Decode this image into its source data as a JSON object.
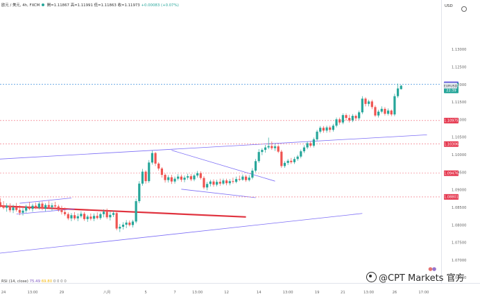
{
  "header": {
    "symbol": "欧元 / 美元, 4h, FXCM",
    "open": "開=1.11867",
    "high": "高=1.11991",
    "low": "低=1.11863",
    "close": "收=1.11973",
    "change": "+0.00083 (+0.07%)",
    "currency": "USD"
  },
  "rsi_legend": {
    "label": "RSI (14, close)",
    "value1": "75.49",
    "value2": "69.80",
    "extra": "0 0 0 0"
  },
  "watermark": "@CPT Markets 官方",
  "colors": {
    "up": "#26a69a",
    "down": "#ef5350",
    "channel": "#7b6cf6",
    "red_line": "#e0323e",
    "level_dash": "#f06070",
    "current": "#1e7fd8"
  },
  "chart_data": {
    "type": "candlestick",
    "title": "欧元 / 美元, 4h, FXCM",
    "ylabel": "USD",
    "ylim": [
      1.0635,
      1.1435
    ],
    "y_ticks": [
      1.065,
      1.07,
      1.075,
      1.08,
      1.085,
      1.09,
      1.095,
      1.1,
      1.105,
      1.11,
      1.115,
      1.12,
      1.125,
      1.13
    ],
    "y_tick_labels": [
      "1.06500",
      "1.07000",
      "1.07500",
      "1.08000",
      "1.08500",
      "1.09000",
      "1.09500",
      "1.10000",
      "1.10500",
      "1.11000",
      "1.11500",
      "1.12000",
      "1.12500",
      "1.13000"
    ],
    "x_tick_labels": [
      "24",
      "13:00",
      "29",
      "八月",
      "5",
      "7",
      "13:00",
      "12",
      "14",
      "13:00",
      "19",
      "21",
      "13:00",
      "26",
      "17:00"
    ],
    "x_tick_index": [
      1,
      10,
      19,
      33,
      45,
      54,
      61,
      70,
      80,
      89,
      98,
      106,
      114,
      122,
      131
    ],
    "bar_count": 135,
    "candles": [
      [
        1.0865,
        1.0876,
        1.085,
        1.0855
      ],
      [
        1.0855,
        1.0868,
        1.0845,
        1.0849
      ],
      [
        1.0849,
        1.0862,
        1.0838,
        1.0855
      ],
      [
        1.0855,
        1.0862,
        1.0836,
        1.0842
      ],
      [
        1.0842,
        1.0858,
        1.0834,
        1.085
      ],
      [
        1.085,
        1.0863,
        1.0838,
        1.0843
      ],
      [
        1.0843,
        1.0856,
        1.0828,
        1.0835
      ],
      [
        1.0835,
        1.0848,
        1.0827,
        1.0841
      ],
      [
        1.0841,
        1.0858,
        1.0835,
        1.0852
      ],
      [
        1.0852,
        1.0866,
        1.0842,
        1.0846
      ],
      [
        1.0846,
        1.0861,
        1.0838,
        1.0855
      ],
      [
        1.0855,
        1.0864,
        1.0845,
        1.0849
      ],
      [
        1.0849,
        1.0866,
        1.0844,
        1.0861
      ],
      [
        1.0861,
        1.0867,
        1.0842,
        1.0847
      ],
      [
        1.0847,
        1.0862,
        1.0839,
        1.0857
      ],
      [
        1.0857,
        1.0869,
        1.0846,
        1.0851
      ],
      [
        1.0851,
        1.0863,
        1.0841,
        1.0856
      ],
      [
        1.0856,
        1.0866,
        1.0846,
        1.0853
      ],
      [
        1.0853,
        1.0858,
        1.0838,
        1.0843
      ],
      [
        1.0843,
        1.0855,
        1.083,
        1.0837
      ],
      [
        1.0837,
        1.085,
        1.0826,
        1.0831
      ],
      [
        1.0831,
        1.0836,
        1.0814,
        1.0819
      ],
      [
        1.0819,
        1.0834,
        1.0811,
        1.0828
      ],
      [
        1.0828,
        1.0837,
        1.0814,
        1.0819
      ],
      [
        1.0819,
        1.0833,
        1.0811,
        1.0825
      ],
      [
        1.0825,
        1.0839,
        1.082,
        1.0832
      ],
      [
        1.0832,
        1.0837,
        1.0812,
        1.0817
      ],
      [
        1.0817,
        1.0829,
        1.0809,
        1.0824
      ],
      [
        1.0824,
        1.0833,
        1.0813,
        1.0818
      ],
      [
        1.0818,
        1.0833,
        1.0811,
        1.0826
      ],
      [
        1.0826,
        1.0836,
        1.0816,
        1.082
      ],
      [
        1.082,
        1.0836,
        1.0815,
        1.0831
      ],
      [
        1.0831,
        1.0845,
        1.0822,
        1.0838
      ],
      [
        1.0838,
        1.0847,
        1.0817,
        1.0822
      ],
      [
        1.0822,
        1.0838,
        1.0813,
        1.0829
      ],
      [
        1.0829,
        1.0841,
        1.0823,
        1.0834
      ],
      [
        1.0834,
        1.0839,
        1.0785,
        1.079
      ],
      [
        1.079,
        1.0803,
        1.078,
        1.0795
      ],
      [
        1.0795,
        1.0808,
        1.0787,
        1.0801
      ],
      [
        1.0801,
        1.0814,
        1.0791,
        1.0807
      ],
      [
        1.0807,
        1.0813,
        1.0796,
        1.08
      ],
      [
        1.08,
        1.0815,
        1.0793,
        1.081
      ],
      [
        1.081,
        1.0875,
        1.0805,
        1.0868
      ],
      [
        1.0868,
        1.0925,
        1.0862,
        1.0918
      ],
      [
        1.0918,
        1.096,
        1.0912,
        1.0952
      ],
      [
        1.0952,
        1.0956,
        1.0918,
        1.0925
      ],
      [
        1.0925,
        1.0985,
        1.092,
        1.0978
      ],
      [
        1.0978,
        1.1012,
        1.0972,
        1.1005
      ],
      [
        1.1005,
        1.1008,
        1.0968,
        1.0975
      ],
      [
        1.0975,
        1.0979,
        1.0955,
        1.0961
      ],
      [
        1.0961,
        1.0965,
        1.0935,
        1.0943
      ],
      [
        1.0943,
        1.0947,
        1.0921,
        1.0928
      ],
      [
        1.0928,
        1.0942,
        1.0921,
        1.0936
      ],
      [
        1.0936,
        1.0943,
        1.0917,
        1.0924
      ],
      [
        1.0924,
        1.0938,
        1.0918,
        1.0932
      ],
      [
        1.0932,
        1.0945,
        1.0927,
        1.0938
      ],
      [
        1.0938,
        1.0944,
        1.0923,
        1.0929
      ],
      [
        1.0929,
        1.0941,
        1.0922,
        1.0935
      ],
      [
        1.0935,
        1.0946,
        1.0929,
        1.0939
      ],
      [
        1.0939,
        1.0945,
        1.0925,
        1.093
      ],
      [
        1.093,
        1.0945,
        1.0925,
        1.0941
      ],
      [
        1.0941,
        1.0954,
        1.0935,
        1.0948
      ],
      [
        1.0948,
        1.0953,
        1.0929,
        1.0934
      ],
      [
        1.0934,
        1.0939,
        1.0902,
        1.0907
      ],
      [
        1.0907,
        1.0923,
        1.0899,
        1.0917
      ],
      [
        1.0917,
        1.0929,
        1.091,
        1.0924
      ],
      [
        1.0924,
        1.093,
        1.0909,
        1.0915
      ],
      [
        1.0915,
        1.0929,
        1.091,
        1.0923
      ],
      [
        1.0923,
        1.0932,
        1.0912,
        1.0918
      ],
      [
        1.0918,
        1.0932,
        1.0914,
        1.0927
      ],
      [
        1.0927,
        1.0932,
        1.0913,
        1.0919
      ],
      [
        1.0919,
        1.0931,
        1.0913,
        1.0925
      ],
      [
        1.0925,
        1.0935,
        1.0918,
        1.0923
      ],
      [
        1.0923,
        1.0938,
        1.0919,
        1.0931
      ],
      [
        1.0931,
        1.0941,
        1.0925,
        1.0929
      ],
      [
        1.0929,
        1.0944,
        1.0926,
        1.0938
      ],
      [
        1.0938,
        1.0943,
        1.0923,
        1.0928
      ],
      [
        1.0928,
        1.0942,
        1.0924,
        1.0935
      ],
      [
        1.0935,
        1.0962,
        1.093,
        1.0955
      ],
      [
        1.0955,
        1.0988,
        1.095,
        1.0982
      ],
      [
        1.0982,
        1.1016,
        1.0977,
        1.1008
      ],
      [
        1.1008,
        1.1019,
        1.0999,
        1.1014
      ],
      [
        1.1014,
        1.1028,
        1.1006,
        1.1021
      ],
      [
        1.1021,
        1.1049,
        1.1016,
        1.1025
      ],
      [
        1.1025,
        1.1038,
        1.1014,
        1.1019
      ],
      [
        1.1019,
        1.1031,
        1.1011,
        1.1024
      ],
      [
        1.1024,
        1.1029,
        1.1005,
        1.1009
      ],
      [
        1.1009,
        1.1014,
        1.0963,
        1.0968
      ],
      [
        1.0968,
        1.0982,
        1.0963,
        1.0977
      ],
      [
        1.0977,
        1.0988,
        1.0971,
        1.0983
      ],
      [
        1.0983,
        1.0991,
        1.0974,
        1.0979
      ],
      [
        1.0979,
        1.0994,
        1.0974,
        1.0988
      ],
      [
        1.0988,
        1.1,
        1.0983,
        1.0995
      ],
      [
        1.0995,
        1.1015,
        1.099,
        1.101
      ],
      [
        1.101,
        1.1027,
        1.1005,
        1.1021
      ],
      [
        1.1021,
        1.1038,
        1.1016,
        1.1033
      ],
      [
        1.1033,
        1.1038,
        1.1021,
        1.1026
      ],
      [
        1.1026,
        1.1049,
        1.1021,
        1.1044
      ],
      [
        1.1044,
        1.1071,
        1.1039,
        1.1066
      ],
      [
        1.1066,
        1.1082,
        1.1061,
        1.1077
      ],
      [
        1.1077,
        1.1082,
        1.1063,
        1.1069
      ],
      [
        1.1069,
        1.1083,
        1.1063,
        1.1078
      ],
      [
        1.1078,
        1.1083,
        1.1064,
        1.1071
      ],
      [
        1.1071,
        1.1088,
        1.1066,
        1.1083
      ],
      [
        1.1083,
        1.1106,
        1.1078,
        1.1101
      ],
      [
        1.1101,
        1.1106,
        1.1086,
        1.1092
      ],
      [
        1.1092,
        1.1118,
        1.1087,
        1.1113
      ],
      [
        1.1113,
        1.1118,
        1.1098,
        1.1105
      ],
      [
        1.1105,
        1.1114,
        1.1092,
        1.1098
      ],
      [
        1.1098,
        1.1116,
        1.1093,
        1.1111
      ],
      [
        1.1111,
        1.1115,
        1.1098,
        1.1104
      ],
      [
        1.1104,
        1.1126,
        1.1099,
        1.1121
      ],
      [
        1.1121,
        1.1167,
        1.1116,
        1.116
      ],
      [
        1.116,
        1.1164,
        1.1138,
        1.1145
      ],
      [
        1.1145,
        1.1157,
        1.1138,
        1.1152
      ],
      [
        1.1152,
        1.1157,
        1.113,
        1.1136
      ],
      [
        1.1136,
        1.1141,
        1.1108,
        1.1112
      ],
      [
        1.1112,
        1.1128,
        1.1106,
        1.1123
      ],
      [
        1.1123,
        1.1138,
        1.1118,
        1.1131
      ],
      [
        1.1131,
        1.1136,
        1.1112,
        1.1117
      ],
      [
        1.1117,
        1.1132,
        1.1112,
        1.1126
      ],
      [
        1.1126,
        1.1129,
        1.111,
        1.1115
      ],
      [
        1.1115,
        1.1174,
        1.111,
        1.1167
      ],
      [
        1.1167,
        1.1203,
        1.1162,
        1.1189
      ],
      [
        1.1187,
        1.1199,
        1.1186,
        1.1197
      ]
    ],
    "price_levels": [
      {
        "value": 1.10975,
        "label": "1.10975"
      },
      {
        "value": 1.10306,
        "label": "1.10306"
      },
      {
        "value": 1.09476,
        "label": "1.09476"
      },
      {
        "value": 1.08801,
        "label": "1.08801"
      }
    ],
    "current_price": {
      "value": 1.11973,
      "label": "1.11973",
      "countdown": "22:39",
      "symbol": "EURUSD"
    },
    "marker_price": {
      "value": 1.12008,
      "label": "1.12008"
    },
    "trendlines": [
      {
        "name": "upper-channel-line",
        "x1": -2,
        "y1": 1.0987,
        "x2": 132,
        "y2": 1.1057
      },
      {
        "name": "lower-channel-line",
        "x1": -2,
        "y1": 1.0718,
        "x2": 112,
        "y2": 1.0833
      },
      {
        "name": "red-resistance-line",
        "x1": -2,
        "y1": 1.0855,
        "x2": 76,
        "y2": 1.0823
      },
      {
        "name": "flag-upper-line",
        "x1": 53,
        "y1": 1.1013,
        "x2": 85,
        "y2": 1.0925
      },
      {
        "name": "flag-lower-line",
        "x1": 56,
        "y1": 1.0902,
        "x2": 79,
        "y2": 1.0878
      },
      {
        "name": "small-channel-upper",
        "x1": 6,
        "y1": 1.0862,
        "x2": 22,
        "y2": 1.0877
      },
      {
        "name": "small-channel-lower",
        "x1": 5,
        "y1": 1.0831,
        "x2": 23,
        "y2": 1.0846
      }
    ]
  }
}
